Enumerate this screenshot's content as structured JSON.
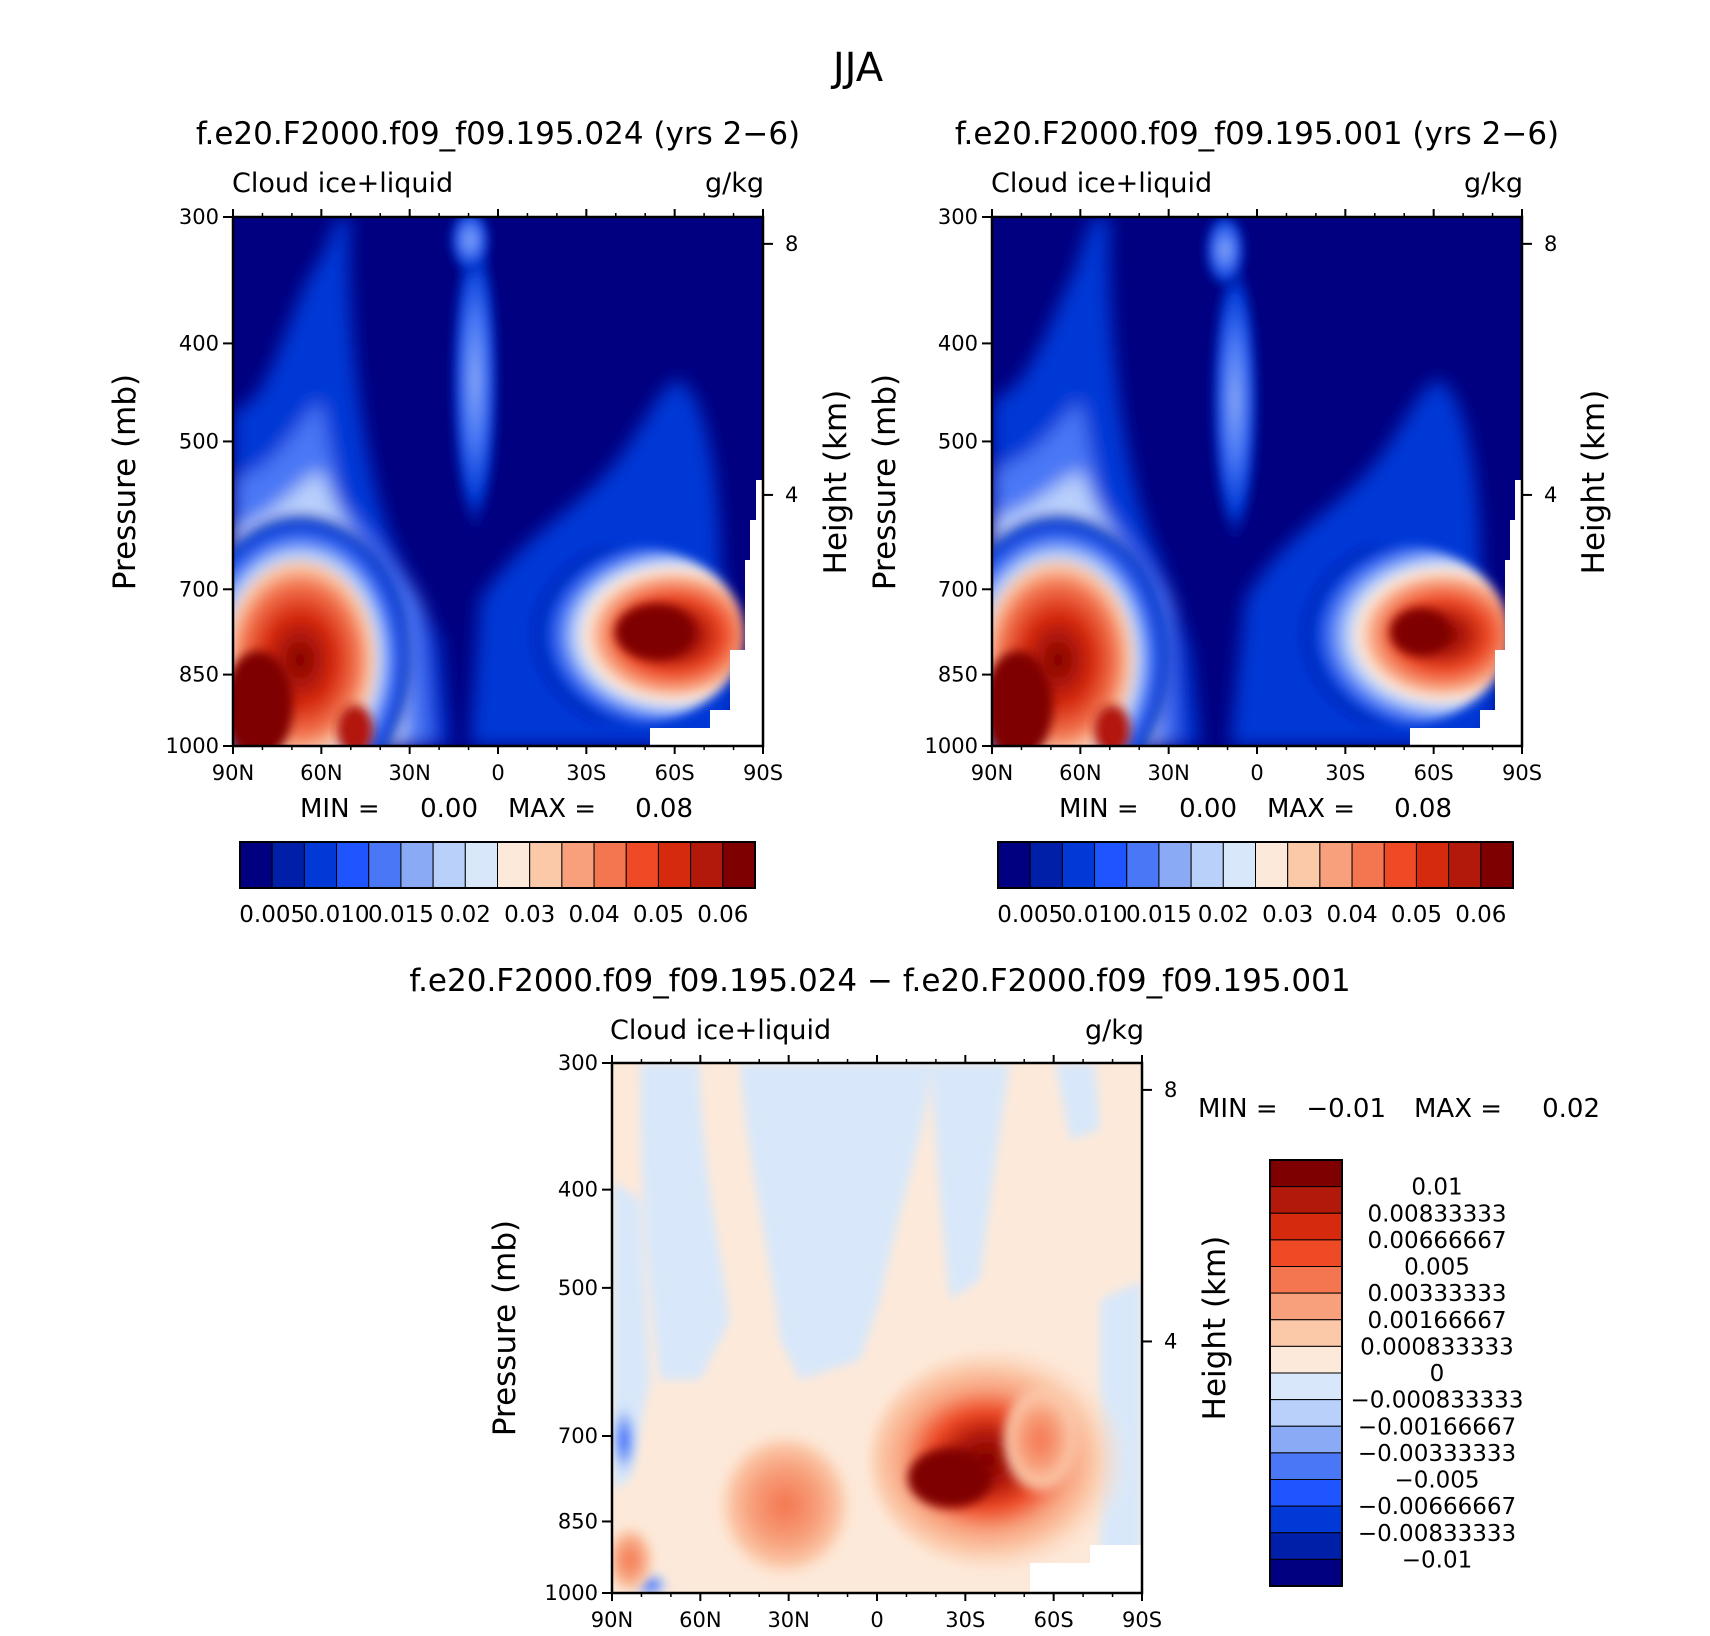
{
  "page_title": "JJA",
  "colors": {
    "positive_scale": [
      "#000080",
      "#001fa8",
      "#0039d6",
      "#1f55ff",
      "#4977f5",
      "#8baaf5",
      "#b9d0fb",
      "#d8e8fa",
      "#fde9d9",
      "#fbc8a8",
      "#f8a07c",
      "#f37650",
      "#ee4a26",
      "#d62a0f",
      "#b2190a",
      "#7f0000"
    ],
    "diff_scale": [
      "#7f0000",
      "#b2190a",
      "#d62a0f",
      "#ee4a26",
      "#f37650",
      "#f8a07c",
      "#fbc8a8",
      "#fde9d9",
      "#d8e8fa",
      "#b9d0fb",
      "#8baaf5",
      "#4977f5",
      "#1f55ff",
      "#0039d6",
      "#001fa8",
      "#000080"
    ]
  },
  "panels": [
    {
      "id": "panel-1",
      "title": "f.e20.F2000.f09_f09.195.024 (yrs 2−6)",
      "left_label": "Cloud ice+liquid",
      "right_label": "g/kg",
      "ylabel": "Pressure (mb)",
      "y2label": "Height (km)",
      "min_label": "MIN =",
      "min_value": "0.00",
      "max_label": "MAX =",
      "max_value": "0.08",
      "colorbar_labels": [
        "0.005",
        "0.010",
        "0.015",
        "0.02",
        "0.03",
        "0.04",
        "0.05",
        "0.06"
      ]
    },
    {
      "id": "panel-2",
      "title": "f.e20.F2000.f09_f09.195.001 (yrs 2−6)",
      "left_label": "Cloud ice+liquid",
      "right_label": "g/kg",
      "ylabel": "Pressure (mb)",
      "y2label": "Height (km)",
      "min_label": "MIN =",
      "min_value": "0.00",
      "max_label": "MAX =",
      "max_value": "0.08",
      "colorbar_labels": [
        "0.005",
        "0.010",
        "0.015",
        "0.02",
        "0.03",
        "0.04",
        "0.05",
        "0.06"
      ]
    },
    {
      "id": "panel-3",
      "title": "f.e20.F2000.f09_f09.195.024 − f.e20.F2000.f09_f09.195.001",
      "left_label": "Cloud ice+liquid",
      "right_label": "g/kg",
      "ylabel": "Pressure (mb)",
      "y2label": "Height (km)",
      "min_label": "MIN =",
      "min_value": "−0.01",
      "max_label": "MAX =",
      "max_value": "0.02",
      "colorbar_labels": [
        "0.01",
        "0.00833333",
        "0.00666667",
        "0.005",
        "0.00333333",
        "0.00166667",
        "0.000833333",
        "0",
        "−0.000833333",
        "−0.00166667",
        "−0.00333333",
        "−0.005",
        "−0.00666667",
        "−0.00833333",
        "−0.01"
      ]
    }
  ],
  "chart_data": [
    {
      "type": "heatmap",
      "title": "f.e20.F2000.f09_f09.195.024 (yrs 2−6)",
      "variable": "Cloud ice+liquid",
      "units": "g/kg",
      "xlabel": "",
      "ylabel": "Pressure (mb)",
      "y2label": "Height (km)",
      "x_ticks": [
        "90N",
        "60N",
        "30N",
        "0",
        "30S",
        "60S",
        "90S"
      ],
      "y_ticks": [
        "300",
        "400",
        "500",
        "700",
        "850",
        "1000"
      ],
      "y2_ticks": [
        "8",
        "4"
      ],
      "ylim": [
        1000,
        300
      ],
      "xlim": [
        90,
        -90
      ],
      "min": 0.0,
      "max": 0.08,
      "contour_levels": [
        0.005,
        0.0075,
        0.01,
        0.0125,
        0.015,
        0.0175,
        0.02,
        0.025,
        0.03,
        0.035,
        0.04,
        0.045,
        0.05,
        0.055,
        0.06
      ],
      "features": [
        {
          "lat": 75,
          "p": 960,
          "value": 0.08
        },
        {
          "lat": 55,
          "p": 880,
          "value": 0.05
        },
        {
          "lat": 42,
          "p": 980,
          "value": 0.06
        },
        {
          "lat": -52,
          "p": 850,
          "value": 0.07
        },
        {
          "lat": -25,
          "p": 850,
          "value": 0.035
        },
        {
          "lat": 0,
          "p": 560,
          "value": 0.015
        }
      ]
    },
    {
      "type": "heatmap",
      "title": "f.e20.F2000.f09_f09.195.001 (yrs 2−6)",
      "variable": "Cloud ice+liquid",
      "units": "g/kg",
      "xlabel": "",
      "ylabel": "Pressure (mb)",
      "y2label": "Height (km)",
      "x_ticks": [
        "90N",
        "60N",
        "30N",
        "0",
        "30S",
        "60S",
        "90S"
      ],
      "y_ticks": [
        "300",
        "400",
        "500",
        "700",
        "850",
        "1000"
      ],
      "y2_ticks": [
        "8",
        "4"
      ],
      "ylim": [
        1000,
        300
      ],
      "xlim": [
        90,
        -90
      ],
      "min": 0.0,
      "max": 0.08,
      "contour_levels": [
        0.005,
        0.0075,
        0.01,
        0.0125,
        0.015,
        0.0175,
        0.02,
        0.025,
        0.03,
        0.035,
        0.04,
        0.045,
        0.05,
        0.055,
        0.06
      ],
      "features": [
        {
          "lat": 75,
          "p": 960,
          "value": 0.08
        },
        {
          "lat": 55,
          "p": 880,
          "value": 0.045
        },
        {
          "lat": 42,
          "p": 980,
          "value": 0.06
        },
        {
          "lat": -55,
          "p": 850,
          "value": 0.065
        },
        {
          "lat": -22,
          "p": 850,
          "value": 0.025
        },
        {
          "lat": 0,
          "p": 560,
          "value": 0.012
        }
      ]
    },
    {
      "type": "heatmap",
      "title": "f.e20.F2000.f09_f09.195.024 − f.e20.F2000.f09_f09.195.001",
      "variable": "Cloud ice+liquid",
      "units": "g/kg",
      "xlabel": "",
      "ylabel": "Pressure (mb)",
      "y2label": "Height (km)",
      "x_ticks": [
        "90N",
        "60N",
        "30N",
        "0",
        "30S",
        "60S",
        "90S"
      ],
      "y_ticks": [
        "300",
        "400",
        "500",
        "700",
        "850",
        "1000"
      ],
      "y2_ticks": [
        "8",
        "4"
      ],
      "ylim": [
        1000,
        300
      ],
      "xlim": [
        90,
        -90
      ],
      "min": -0.01,
      "max": 0.02,
      "contour_levels": [
        -0.01,
        -0.00833333,
        -0.00666667,
        -0.005,
        -0.00333333,
        -0.00166667,
        -0.000833333,
        0,
        0.000833333,
        0.00166667,
        0.00333333,
        0.005,
        0.00666667,
        0.00833333,
        0.01
      ],
      "features": [
        {
          "lat": -25,
          "p": 850,
          "value": 0.012
        },
        {
          "lat": -50,
          "p": 830,
          "value": 0.006
        },
        {
          "lat": 45,
          "p": 880,
          "value": 0.004
        },
        {
          "lat": 85,
          "p": 960,
          "value": 0.006
        },
        {
          "lat": 88,
          "p": 800,
          "value": -0.004
        },
        {
          "lat": 75,
          "p": 1000,
          "value": -0.006
        }
      ]
    }
  ]
}
